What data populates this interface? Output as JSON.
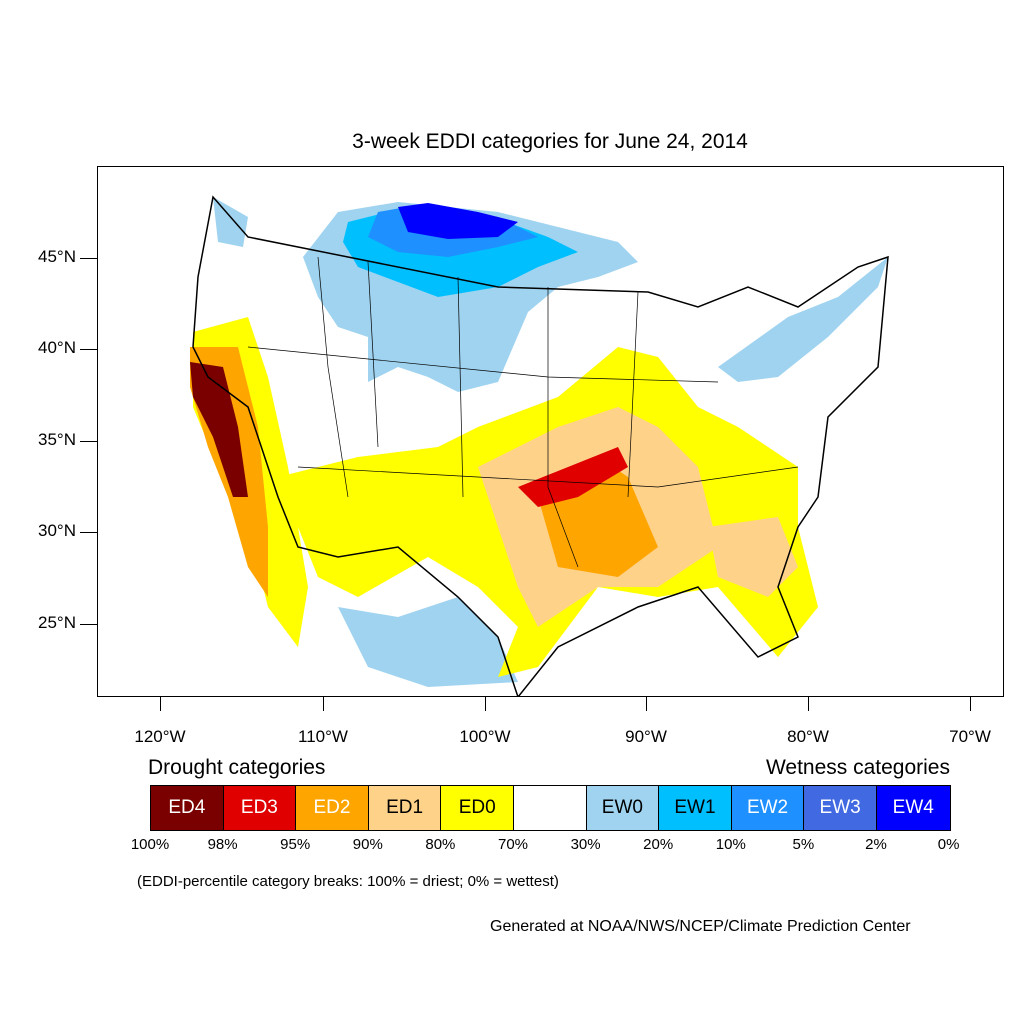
{
  "map": {
    "title": "3-week EDDI categories for June 24, 2014",
    "lat_ticks": [
      "45°N",
      "40°N",
      "35°N",
      "30°N",
      "25°N"
    ],
    "lon_ticks": [
      "120°W",
      "110°W",
      "100°W",
      "90°W",
      "80°W",
      "70°W"
    ]
  },
  "legend": {
    "drought_title": "Drought categories",
    "wet_title": "Wetness categories",
    "categories": [
      {
        "label": "ED4",
        "color": "#7a0000",
        "text_color": "#ffffff"
      },
      {
        "label": "ED3",
        "color": "#e00000",
        "text_color": "#ffffff"
      },
      {
        "label": "ED2",
        "color": "#ffa500",
        "text_color": "#ffffff"
      },
      {
        "label": "ED1",
        "color": "#ffd28a",
        "text_color": "#000000"
      },
      {
        "label": "ED0",
        "color": "#ffff00",
        "text_color": "#000000"
      },
      {
        "label": "",
        "color": "#ffffff",
        "text_color": "#000000"
      },
      {
        "label": "EW0",
        "color": "#9fd3f0",
        "text_color": "#000000"
      },
      {
        "label": "EW1",
        "color": "#00bfff",
        "text_color": "#000000"
      },
      {
        "label": "EW2",
        "color": "#1e90ff",
        "text_color": "#ffffff"
      },
      {
        "label": "EW3",
        "color": "#4169e1",
        "text_color": "#ffffff"
      },
      {
        "label": "EW4",
        "color": "#0000ff",
        "text_color": "#ffffff"
      }
    ],
    "breaks": [
      "100%",
      "98%",
      "95%",
      "90%",
      "80%",
      "70%",
      "30%",
      "20%",
      "10%",
      "5%",
      "2%",
      "0%"
    ],
    "note": "(EDDI-percentile category breaks: 100% = driest; 0% = wettest)"
  },
  "credit": "Generated at NOAA/NWS/NCEP/Climate Prediction Center"
}
